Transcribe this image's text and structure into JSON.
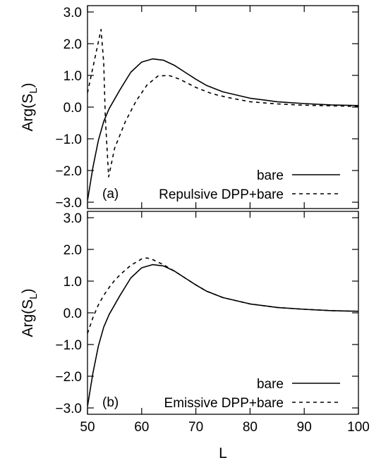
{
  "chart_data": [
    {
      "type": "line",
      "panel_label": "(a)",
      "ylabel_base": "Arg(S",
      "ylabel_sub": "L",
      "ylabel_close": ")",
      "xlabel": "L",
      "xlim": [
        50,
        100
      ],
      "ylim": [
        -3.2,
        3.2
      ],
      "yticks": [
        3.0,
        2.0,
        1.0,
        0.0,
        -1.0,
        -2.0,
        -3.0
      ],
      "ytick_labels": [
        "3.0",
        "2.0",
        "1.0",
        "0.0",
        "−1.0",
        "−2.0",
        "−3.0"
      ],
      "legend_position": "bottom-right",
      "series": [
        {
          "name": "bare",
          "style": "solid",
          "x": [
            50,
            51,
            52,
            53,
            54,
            56,
            58,
            60,
            62,
            64,
            66,
            68,
            70,
            72,
            75,
            80,
            85,
            90,
            95,
            100
          ],
          "y": [
            -2.95,
            -1.9,
            -1.05,
            -0.45,
            -0.05,
            0.55,
            1.1,
            1.42,
            1.52,
            1.48,
            1.32,
            1.1,
            0.88,
            0.68,
            0.48,
            0.28,
            0.17,
            0.11,
            0.07,
            0.05
          ]
        },
        {
          "name": "Repulsive DPP+bare",
          "style": "dashed",
          "x": [
            50,
            52.5,
            53.0,
            53.3,
            53.3,
            53.9,
            55,
            57,
            59,
            61,
            63,
            65,
            67,
            70,
            73,
            76,
            80,
            85,
            90,
            95,
            100
          ],
          "y": [
            0.45,
            2.45,
            1.4,
            -0.35,
            -0.35,
            -2.2,
            -1.3,
            -0.45,
            0.2,
            0.7,
            0.98,
            1.0,
            0.88,
            0.62,
            0.42,
            0.3,
            0.17,
            0.1,
            0.06,
            0.04,
            0.02
          ]
        }
      ]
    },
    {
      "type": "line",
      "panel_label": "(b)",
      "ylabel_base": "Arg(S",
      "ylabel_sub": "L",
      "ylabel_close": ")",
      "xlabel": "L",
      "xlim": [
        50,
        100
      ],
      "ylim": [
        -3.2,
        3.2
      ],
      "xticks": [
        50,
        60,
        70,
        80,
        90,
        100
      ],
      "xtick_labels": [
        "50",
        "60",
        "70",
        "80",
        "90",
        "100"
      ],
      "yticks": [
        3.0,
        2.0,
        1.0,
        0.0,
        -1.0,
        -2.0,
        -3.0
      ],
      "ytick_labels": [
        "3.0",
        "2.0",
        "1.0",
        "0.0",
        "−1.0",
        "−2.0",
        "−3.0"
      ],
      "legend_position": "bottom-right",
      "series": [
        {
          "name": "bare",
          "style": "solid",
          "x": [
            50,
            51,
            52,
            53,
            54,
            56,
            58,
            60,
            62,
            64,
            66,
            68,
            70,
            72,
            75,
            80,
            85,
            90,
            95,
            100
          ],
          "y": [
            -2.95,
            -1.9,
            -1.05,
            -0.45,
            -0.05,
            0.55,
            1.1,
            1.42,
            1.52,
            1.48,
            1.32,
            1.1,
            0.88,
            0.68,
            0.48,
            0.28,
            0.17,
            0.11,
            0.07,
            0.05
          ]
        },
        {
          "name": "Emissive DPP+bare",
          "style": "dashed",
          "x": [
            50,
            51,
            52,
            53,
            54,
            55,
            56,
            58,
            60,
            61,
            62,
            64,
            66,
            68,
            70,
            72,
            75,
            80,
            85,
            90,
            95,
            100
          ],
          "y": [
            -0.65,
            -0.15,
            0.25,
            0.55,
            0.8,
            1.02,
            1.2,
            1.5,
            1.7,
            1.73,
            1.68,
            1.52,
            1.32,
            1.1,
            0.88,
            0.68,
            0.48,
            0.28,
            0.17,
            0.11,
            0.07,
            0.05
          ]
        }
      ]
    }
  ]
}
